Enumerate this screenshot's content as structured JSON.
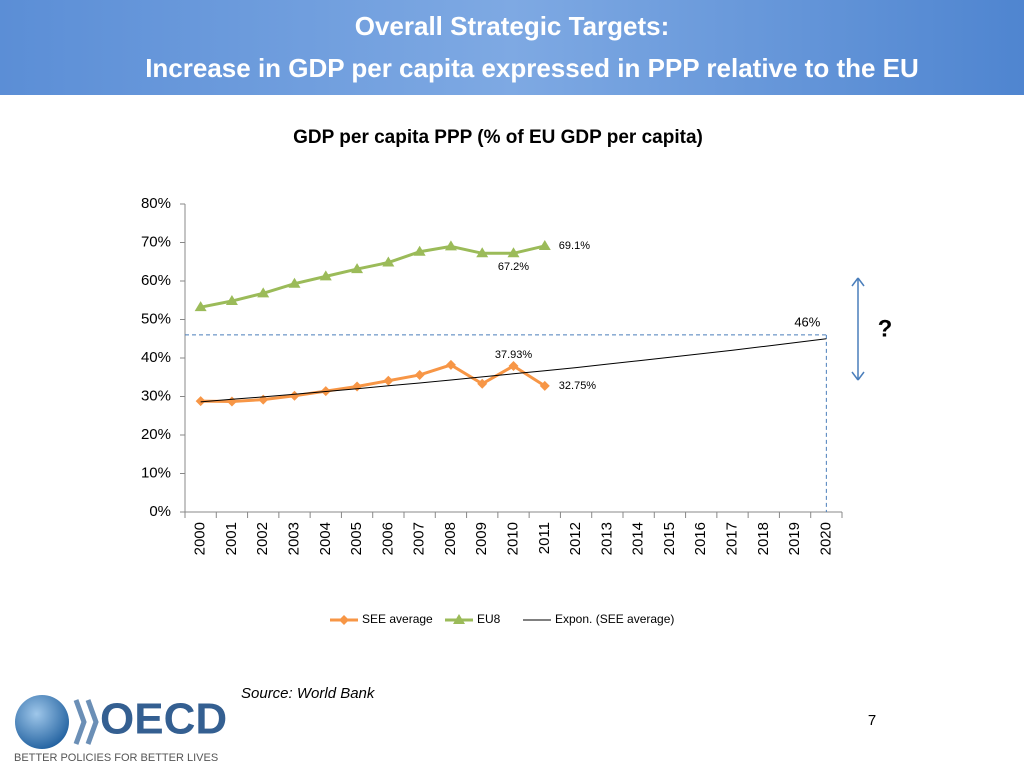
{
  "header": {
    "title_line1": "Overall Strategic Targets:",
    "title_line2": "Increase in GDP per capita expressed in PPP relative to the EU"
  },
  "chart_data": {
    "type": "line",
    "title": "GDP per capita PPP (% of EU GDP per capita)",
    "categories": [
      "2000",
      "2001",
      "2002",
      "2003",
      "2004",
      "2005",
      "2006",
      "2007",
      "2008",
      "2009",
      "2010",
      "2011",
      "2012",
      "2013",
      "2014",
      "2015",
      "2016",
      "2017",
      "2018",
      "2019",
      "2020"
    ],
    "series": [
      {
        "name": "SEE average",
        "color": "#f79646",
        "marker": "diamond",
        "values": [
          28.8,
          28.7,
          29.2,
          30.2,
          31.4,
          32.6,
          34.1,
          35.6,
          38.2,
          33.3,
          37.93,
          32.75,
          null,
          null,
          null,
          null,
          null,
          null,
          null,
          null,
          null
        ],
        "value_labels": [
          null,
          null,
          null,
          null,
          null,
          null,
          null,
          null,
          null,
          null,
          "37.93%",
          "32.75%",
          null,
          null,
          null,
          null,
          null,
          null,
          null,
          null,
          null
        ]
      },
      {
        "name": "EU8",
        "color": "#9bbb59",
        "marker": "triangle",
        "values": [
          53.2,
          54.8,
          56.8,
          59.3,
          61.2,
          63.1,
          64.8,
          67.6,
          69.0,
          67.2,
          67.2,
          69.1,
          null,
          null,
          null,
          null,
          null,
          null,
          null,
          null,
          null
        ],
        "value_labels": [
          null,
          null,
          null,
          null,
          null,
          null,
          null,
          null,
          null,
          null,
          "67.2%",
          "69.1%",
          null,
          null,
          null,
          null,
          null,
          null,
          null,
          null,
          null
        ]
      },
      {
        "name": "Expon. (SEE average)",
        "color": "#000000",
        "marker": "none",
        "values": [
          28.6,
          29.3,
          29.9,
          30.6,
          31.3,
          32.0,
          32.8,
          33.5,
          34.3,
          35.1,
          35.9,
          36.7,
          37.5,
          38.4,
          39.3,
          40.2,
          41.1,
          42.0,
          43.0,
          44.0,
          45.0
        ]
      }
    ],
    "ylim": [
      0,
      80
    ],
    "yticks": [
      {
        "value": 0,
        "label": "0%"
      },
      {
        "value": 10,
        "label": "10%"
      },
      {
        "value": 20,
        "label": "20%"
      },
      {
        "value": 30,
        "label": "30%"
      },
      {
        "value": 40,
        "label": "40%"
      },
      {
        "value": 50,
        "label": "50%"
      },
      {
        "value": 60,
        "label": "60%"
      },
      {
        "value": 70,
        "label": "70%"
      },
      {
        "value": 80,
        "label": "80%"
      }
    ],
    "target": {
      "value": 46,
      "label": "46%"
    },
    "question": "?",
    "legend": "bottom",
    "source": "Source: World Bank"
  },
  "footer": {
    "page_number": "7",
    "logo_name": "OECD",
    "logo_tagline": "BETTER POLICIES FOR BETTER LIVES"
  }
}
